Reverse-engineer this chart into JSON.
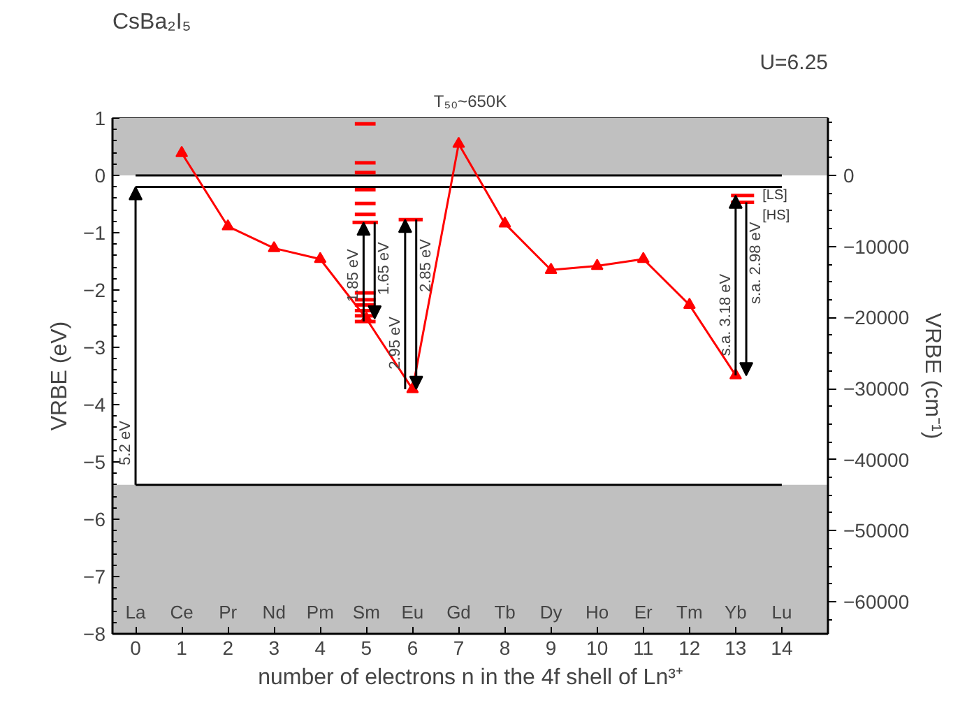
{
  "chart_data": {
    "type": "line",
    "title": "CsBa₂I₅",
    "xlabel": "number of electrons n in the 4f shell of Ln³⁺",
    "ylabel": "VRBE (eV)",
    "y2label": "VRBE (cm⁻¹)",
    "xlim": [
      -0.5,
      15
    ],
    "ylim": [
      -8,
      1
    ],
    "xticks": [
      0,
      1,
      2,
      3,
      4,
      5,
      6,
      7,
      8,
      9,
      10,
      11,
      12,
      13,
      14
    ],
    "yticks": [
      -8,
      -7,
      -6,
      -5,
      -4,
      -3,
      -2,
      -1,
      0,
      1
    ],
    "y2lim": [
      -64520,
      8065
    ],
    "y2ticks": [
      -60000,
      -50000,
      -40000,
      -30000,
      -20000,
      -10000,
      0
    ],
    "grid": false,
    "bands": [
      {
        "axis": "y",
        "from": 0,
        "to": 1,
        "color": "#c0c0c0"
      },
      {
        "axis": "y",
        "from": -8,
        "to": -5.4,
        "color": "#c0c0c0"
      }
    ],
    "series": [
      {
        "color": "#ff0000",
        "marker": "triangle",
        "x": [
          1,
          2,
          3,
          4,
          5,
          6,
          7,
          8,
          9,
          10,
          11,
          12,
          13
        ],
        "values": [
          0.39,
          -0.89,
          -1.27,
          -1.46,
          -2.5,
          -3.73,
          0.55,
          -0.84,
          -1.65,
          -1.58,
          -1.46,
          -2.26,
          -3.49
        ]
      },
      {
        "color": "#000000",
        "x": [
          0,
          14
        ],
        "values": [
          0,
          0
        ]
      },
      {
        "color": "#000000",
        "x": [
          0,
          14
        ],
        "values": [
          -0.2,
          -0.2
        ]
      },
      {
        "color": "#000000",
        "x": [
          0,
          14
        ],
        "values": [
          -5.4,
          -5.4
        ]
      },
      {
        "color": "#ff0000",
        "x": [
          4.75,
          5.2
        ],
        "values": [
          0.9,
          0.9
        ]
      },
      {
        "color": "#ff0000",
        "x": [
          4.75,
          5.2
        ],
        "values": [
          0.22,
          0.22
        ]
      },
      {
        "color": "#ff0000",
        "x": [
          4.75,
          5.2
        ],
        "values": [
          0.05,
          0.05
        ]
      },
      {
        "color": "#ff0000",
        "x": [
          4.75,
          5.2
        ],
        "values": [
          -0.25,
          -0.25
        ]
      },
      {
        "color": "#ff0000",
        "x": [
          4.75,
          5.2
        ],
        "values": [
          -0.49,
          -0.49
        ]
      },
      {
        "color": "#ff0000",
        "x": [
          4.75,
          5.2
        ],
        "values": [
          -0.68,
          -0.68
        ]
      },
      {
        "color": "#ff0000",
        "x": [
          4.7,
          5.25
        ],
        "values": [
          -0.82,
          -0.82
        ]
      },
      {
        "color": "#ff0000",
        "x": [
          4.75,
          5.2
        ],
        "values": [
          -2.05,
          -2.05
        ]
      },
      {
        "color": "#ff0000",
        "x": [
          4.75,
          5.2
        ],
        "values": [
          -2.17,
          -2.17
        ]
      },
      {
        "color": "#ff0000",
        "x": [
          4.75,
          5.2
        ],
        "values": [
          -2.26,
          -2.26
        ]
      },
      {
        "color": "#ff0000",
        "x": [
          4.75,
          5.2
        ],
        "values": [
          -2.36,
          -2.36
        ]
      },
      {
        "color": "#ff0000",
        "x": [
          4.75,
          5.2
        ],
        "values": [
          -2.45,
          -2.45
        ]
      },
      {
        "color": "#ff0000",
        "x": [
          4.75,
          5.2
        ],
        "values": [
          -2.55,
          -2.55
        ]
      },
      {
        "color": "#ff0000",
        "x": [
          5.7,
          6.22
        ],
        "values": [
          -0.77,
          -0.77
        ]
      },
      {
        "name": "[LS]",
        "color": "#ff0000",
        "x": [
          12.9,
          13.4
        ],
        "values": [
          -0.35,
          -0.35
        ]
      },
      {
        "name": "[HS]",
        "color": "#ff0000",
        "x": [
          12.9,
          13.4
        ],
        "values": [
          -0.47,
          -0.47
        ]
      }
    ],
    "annotations": [
      "U=6.25",
      "T₅₀~650K",
      "La",
      "Ce",
      "Pr",
      "Nd",
      "Pm",
      "Sm",
      "Eu",
      "Gd",
      "Tb",
      "Dy",
      "Ho",
      "Er",
      "Tm",
      "Yb",
      "Lu",
      {
        "text": "5.2 eV",
        "x": 0,
        "y": -5.4
      },
      {
        "text": "1.85 eV",
        "x": 4.94,
        "y": -2.55
      },
      {
        "text": "1.65 eV",
        "x": 5.18,
        "y": -0.82
      },
      {
        "text": "2.95 eV",
        "x": 5.84,
        "y": -3.73
      },
      {
        "text": "2.85 eV",
        "x": 6.08,
        "y": -0.77
      },
      {
        "text": "s.a. 3.18 eV",
        "x": 13.0,
        "y": -3.49
      },
      {
        "text": "s.a. 2.98 eV",
        "x": 13.23,
        "y": -0.47
      }
    ]
  }
}
